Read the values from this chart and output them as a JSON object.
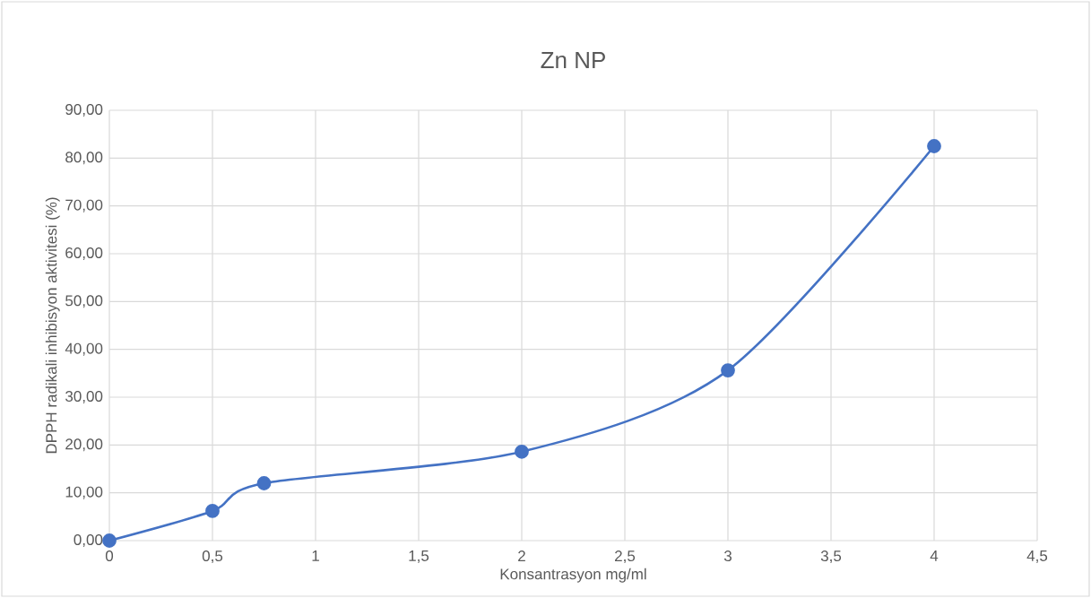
{
  "chart_data": {
    "type": "line",
    "title": "Zn NP",
    "xlabel": "Konsantrasyon mg/ml",
    "ylabel": "DPPH radikali inhibisyon aktivitesi (%)",
    "x": [
      0,
      0.5,
      0.75,
      2,
      3,
      4
    ],
    "series": [
      {
        "color": "#4472c4",
        "values": [
          0,
          6.2,
          12.0,
          18.6,
          35.6,
          82.5
        ]
      }
    ],
    "xlim": [
      0,
      4.5
    ],
    "xticks": [
      0,
      {
        "value": 0.5,
        "label": "0,5"
      },
      1,
      {
        "value": 1.5,
        "label": "1,5"
      },
      2,
      {
        "value": 2.5,
        "label": "2,5"
      },
      3,
      {
        "value": 3.5,
        "label": "3,5"
      },
      4,
      {
        "value": 4.5,
        "label": "4,5"
      }
    ],
    "ylim": [
      0,
      90
    ],
    "yticks": [
      {
        "value": 0,
        "label": "0,00"
      },
      {
        "value": 10,
        "label": "10,00"
      },
      {
        "value": 20,
        "label": "20,00"
      },
      {
        "value": 30,
        "label": "30,00"
      },
      {
        "value": 40,
        "label": "40,00"
      },
      {
        "value": 50,
        "label": "50,00"
      },
      {
        "value": 60,
        "label": "60,00"
      },
      {
        "value": 70,
        "label": "70,00"
      },
      {
        "value": 80,
        "label": "80,00"
      },
      {
        "value": 90,
        "label": "90,00"
      }
    ],
    "grid": true,
    "marker": "circle",
    "line_style": "solid"
  }
}
